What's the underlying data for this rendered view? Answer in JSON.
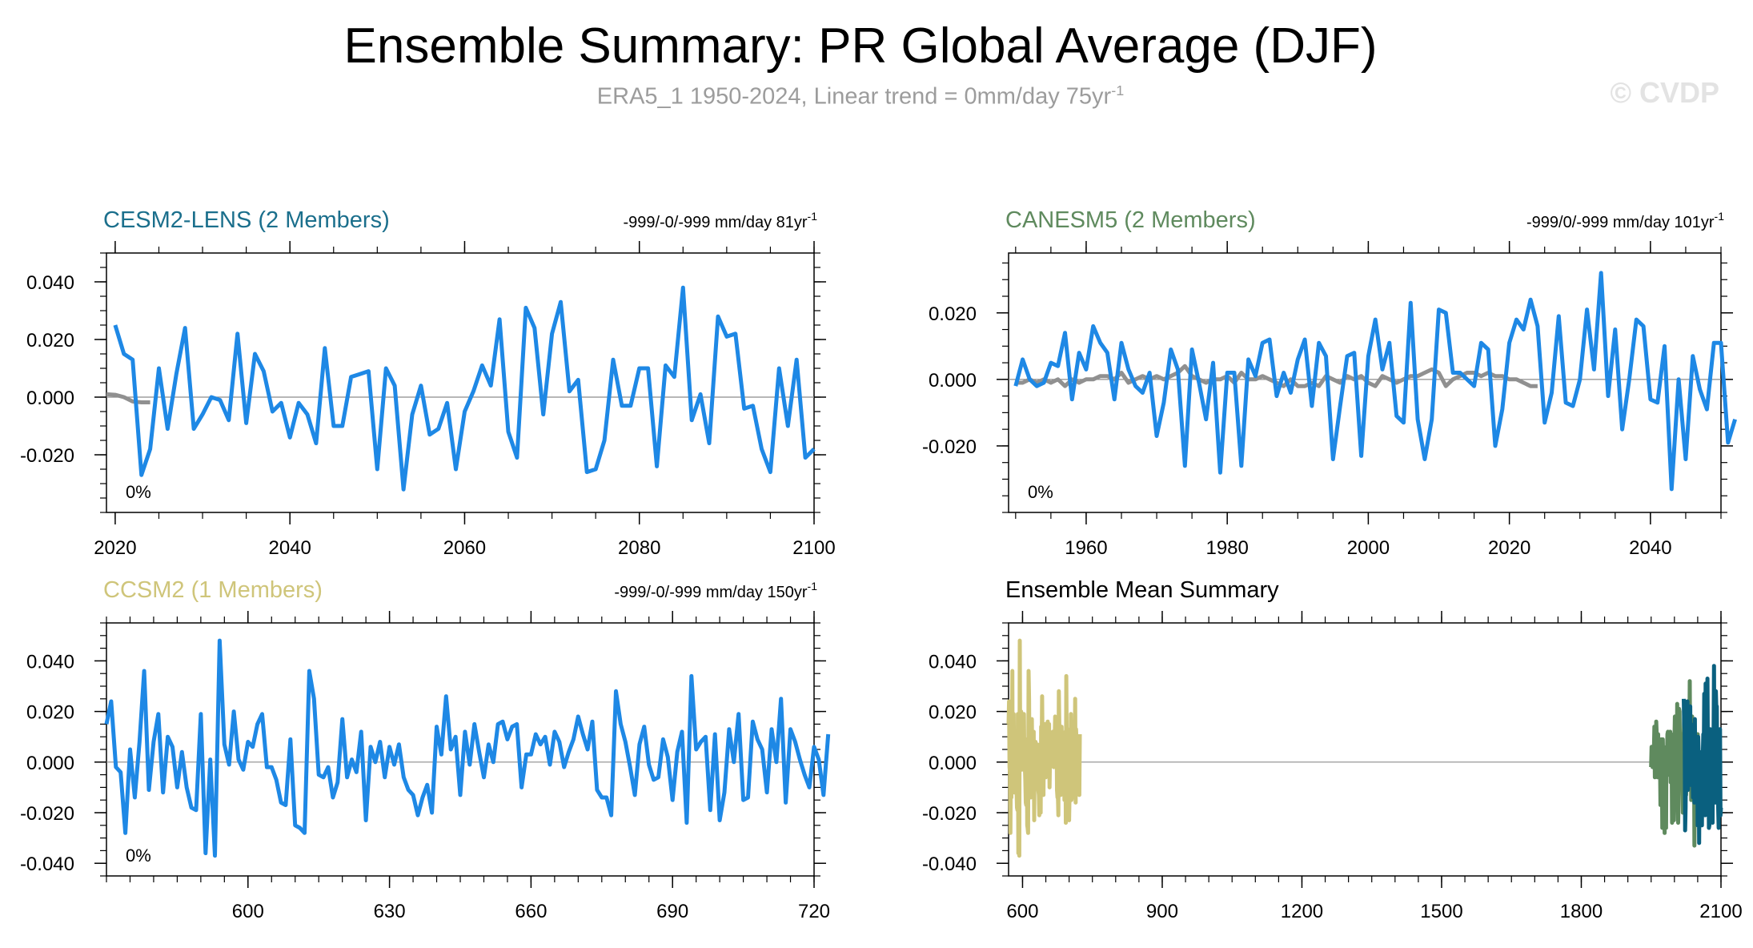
{
  "figure": {
    "title": "Ensemble Summary: PR Global Average (DJF)",
    "subtitle_main": "ERA5_1 1950-2024, Linear trend = 0mm/day 75yr",
    "subtitle_exp": "-1",
    "watermark": "© CVDP"
  },
  "chart_data": [
    {
      "type": "line",
      "panel": "top-left",
      "title": "CESM2-LENS (2 Members)",
      "title_color": "#1b6f8c",
      "stats_main": "-999/-0/-999 mm/day 81yr",
      "stats_exp": "-1",
      "percent_label": "0%",
      "xlim": [
        2019,
        2100
      ],
      "ylim": [
        -0.04,
        0.05
      ],
      "xticks": [
        2020,
        2040,
        2060,
        2080,
        2100
      ],
      "xtick_labels": [
        "2020",
        "2040",
        "2060",
        "2080",
        "2100"
      ],
      "yticks": [
        -0.02,
        0,
        0.02,
        0.04
      ],
      "ytick_labels": [
        "-0.020",
        "0.000",
        "0.020",
        "0.040"
      ],
      "minor_y_step": 0.005,
      "minor_x_step": 5,
      "zero_line": true,
      "series": [
        {
          "name": "observations",
          "color": "#909090",
          "x": [
            2019,
            2020,
            2021,
            2022,
            2023,
            2024
          ],
          "values": [
            0.001,
            0.0008,
            0.0,
            -0.0015,
            -0.0018,
            -0.0018
          ]
        },
        {
          "name": "ensemble",
          "color": "#1e88e5",
          "x_start": 2020,
          "values": [
            0.025,
            0.015,
            0.013,
            -0.027,
            -0.018,
            0.01,
            -0.011,
            0.008,
            0.024,
            -0.011,
            -0.006,
            0.0,
            -0.001,
            -0.008,
            0.022,
            -0.009,
            0.015,
            0.009,
            -0.005,
            -0.002,
            -0.014,
            -0.002,
            -0.006,
            -0.016,
            0.017,
            -0.01,
            -0.01,
            0.007,
            0.008,
            0.009,
            -0.025,
            0.01,
            0.004,
            -0.032,
            -0.006,
            0.004,
            -0.013,
            -0.011,
            -0.002,
            -0.025,
            -0.005,
            0.002,
            0.011,
            0.004,
            0.027,
            -0.012,
            -0.021,
            0.031,
            0.024,
            -0.006,
            0.022,
            0.033,
            0.002,
            0.006,
            -0.026,
            -0.025,
            -0.015,
            0.013,
            -0.003,
            -0.003,
            0.01,
            0.01,
            -0.024,
            0.011,
            0.007,
            0.038,
            -0.008,
            0.001,
            -0.016,
            0.028,
            0.021,
            0.022,
            -0.004,
            -0.003,
            -0.018,
            -0.026,
            0.01,
            -0.01,
            0.013,
            -0.021,
            -0.018
          ]
        }
      ]
    },
    {
      "type": "line",
      "panel": "top-right",
      "title": "CANESM5 (2 Members)",
      "title_color": "#5f8a5e",
      "stats_main": "-999/0/-999 mm/day 101yr",
      "stats_exp": "-1",
      "percent_label": "0%",
      "xlim": [
        1949,
        2050
      ],
      "ylim": [
        -0.04,
        0.038
      ],
      "xticks": [
        1960,
        1980,
        2000,
        2020,
        2040
      ],
      "xtick_labels": [
        "1960",
        "1980",
        "2000",
        "2020",
        "2040"
      ],
      "yticks": [
        -0.02,
        0,
        0.02
      ],
      "ytick_labels": [
        "-0.020",
        "0.000",
        "0.020"
      ],
      "minor_y_step": 0.005,
      "minor_x_step": 5,
      "zero_line": true,
      "series": [
        {
          "name": "observations",
          "color": "#909090",
          "x_start": 1950,
          "values": [
            -0.001,
            -0.001,
            0.0,
            -0.001,
            0.0,
            -0.001,
            0.0,
            -0.002,
            0.0,
            -0.001,
            0.0,
            0.0,
            0.001,
            0.001,
            0.0,
            0.002,
            -0.001,
            0.0,
            0.001,
            0.0,
            0.001,
            0.0,
            0.001,
            0.002,
            0.004,
            0.001,
            0.0,
            -0.001,
            0.0,
            0.0,
            0.001,
            -0.001,
            0.002,
            0.0,
            0.0,
            0.001,
            0.0,
            -0.001,
            -0.002,
            0.0,
            -0.002,
            -0.002,
            -0.001,
            -0.002,
            0.001,
            0.0,
            -0.001,
            0.001,
            0.0,
            0.001,
            -0.001,
            -0.002,
            0.001,
            0.0,
            -0.001,
            0.0,
            0.001,
            0.001,
            0.002,
            0.003,
            0.002,
            -0.002,
            0.0,
            0.001,
            0.002,
            0.002,
            0.001,
            0.002,
            0.001,
            0.001,
            0.0,
            0.0,
            -0.001,
            -0.002,
            -0.002
          ]
        },
        {
          "name": "ensemble",
          "color": "#1e88e5",
          "x_start": 1950,
          "values": [
            -0.002,
            0.006,
            0.0,
            -0.002,
            -0.001,
            0.005,
            0.004,
            0.014,
            -0.006,
            0.008,
            0.003,
            0.016,
            0.011,
            0.008,
            -0.006,
            0.011,
            0.003,
            -0.002,
            -0.004,
            0.002,
            -0.017,
            -0.007,
            0.009,
            0.003,
            -0.026,
            0.009,
            -0.001,
            -0.012,
            0.005,
            -0.028,
            0.002,
            0.002,
            -0.026,
            0.006,
            0.001,
            0.011,
            0.012,
            -0.005,
            0.002,
            -0.004,
            0.006,
            0.012,
            -0.008,
            0.011,
            0.007,
            -0.024,
            -0.008,
            0.007,
            0.008,
            -0.023,
            0.007,
            0.018,
            0.003,
            0.011,
            -0.011,
            -0.013,
            0.023,
            -0.012,
            -0.024,
            -0.012,
            0.021,
            0.02,
            0.002,
            0.002,
            0.0,
            -0.002,
            0.011,
            0.009,
            -0.02,
            -0.009,
            0.011,
            0.018,
            0.015,
            0.024,
            0.016,
            -0.013,
            -0.004,
            0.019,
            -0.007,
            -0.008,
            0.0,
            0.021,
            0.003,
            0.032,
            -0.005,
            0.015,
            -0.015,
            0.0,
            0.018,
            0.016,
            -0.006,
            -0.007,
            0.01,
            -0.033,
            0.0,
            -0.024,
            0.007,
            -0.003,
            -0.009,
            0.011,
            0.011,
            -0.019,
            -0.012
          ]
        }
      ]
    },
    {
      "type": "line",
      "panel": "bottom-left",
      "title": "CCSM2 (1 Members)",
      "title_color": "#cfc57a",
      "stats_main": "-999/-0/-999 mm/day 150yr",
      "stats_exp": "-1",
      "percent_label": "0%",
      "xlim": [
        570,
        720
      ],
      "ylim": [
        -0.045,
        0.055
      ],
      "xticks": [
        600,
        630,
        660,
        690,
        720
      ],
      "xtick_labels": [
        "600",
        "630",
        "660",
        "690",
        "720"
      ],
      "yticks": [
        -0.04,
        -0.02,
        0,
        0.02,
        0.04
      ],
      "ytick_labels": [
        "-0.040",
        "-0.020",
        "0.000",
        "0.020",
        "0.040"
      ],
      "minor_y_step": 0.005,
      "minor_x_step": 5,
      "zero_line": true,
      "series": [
        {
          "name": "ensemble",
          "color": "#1e88e5",
          "x_start": 570,
          "values": [
            0.015,
            0.024,
            -0.002,
            -0.004,
            -0.028,
            0.005,
            -0.014,
            0.008,
            0.036,
            -0.011,
            0.008,
            0.019,
            -0.012,
            0.01,
            0.006,
            -0.01,
            0.004,
            -0.01,
            -0.018,
            -0.019,
            0.019,
            -0.036,
            0.001,
            -0.037,
            0.048,
            0.007,
            -0.001,
            0.02,
            0.001,
            -0.003,
            0.008,
            0.006,
            0.015,
            0.019,
            -0.002,
            -0.002,
            -0.007,
            -0.016,
            -0.017,
            0.009,
            -0.025,
            -0.026,
            -0.028,
            0.036,
            0.025,
            -0.005,
            -0.006,
            -0.002,
            -0.014,
            -0.008,
            0.017,
            -0.006,
            0.001,
            -0.004,
            0.012,
            -0.023,
            0.006,
            0.0,
            0.008,
            -0.006,
            0.006,
            -0.001,
            0.007,
            -0.006,
            -0.011,
            -0.013,
            -0.021,
            -0.014,
            -0.009,
            -0.02,
            0.014,
            0.003,
            0.026,
            0.005,
            0.01,
            -0.013,
            0.012,
            -0.001,
            0.015,
            0.004,
            -0.006,
            0.007,
            0.0,
            0.015,
            0.016,
            0.009,
            0.014,
            0.015,
            -0.01,
            0.003,
            0.003,
            0.011,
            0.007,
            0.01,
            -0.001,
            0.012,
            0.008,
            -0.002,
            0.004,
            0.009,
            0.018,
            0.011,
            0.005,
            0.016,
            -0.011,
            -0.014,
            -0.014,
            -0.021,
            0.028,
            0.015,
            0.008,
            -0.002,
            -0.013,
            0.007,
            0.014,
            -0.001,
            -0.007,
            -0.006,
            0.009,
            0.002,
            -0.015,
            0.004,
            0.012,
            -0.024,
            0.034,
            0.005,
            0.008,
            0.01,
            -0.019,
            0.011,
            -0.023,
            -0.012,
            0.013,
            0.0,
            0.019,
            -0.015,
            -0.014,
            0.016,
            0.009,
            0.005,
            -0.012,
            0.013,
            0.0,
            0.025,
            -0.016,
            0.013,
            0.008,
            0.001,
            -0.005,
            -0.01,
            0.006,
            0.001,
            -0.013,
            0.011
          ]
        }
      ]
    },
    {
      "type": "line",
      "panel": "bottom-right",
      "title": "Ensemble Mean Summary",
      "title_color": "#000000",
      "xlim": [
        570,
        2100
      ],
      "ylim": [
        -0.045,
        0.055
      ],
      "xticks": [
        600,
        900,
        1200,
        1500,
        1800,
        2100
      ],
      "xtick_labels": [
        "600",
        "900",
        "1200",
        "1500",
        "1800",
        "2100"
      ],
      "yticks": [
        -0.04,
        -0.02,
        0,
        0.02,
        0.04
      ],
      "ytick_labels": [
        "-0.040",
        "-0.020",
        "0.000",
        "0.020",
        "0.040"
      ],
      "minor_y_step": 0.005,
      "minor_x_step": 50,
      "zero_line": true,
      "series": [
        {
          "name": "CCSM2 (1 Members)",
          "color": "#cfc57a",
          "ref": 2
        },
        {
          "name": "CANESM5 (2 Members)",
          "color": "#5f8a5e",
          "ref": 1
        },
        {
          "name": "CESM2-LENS (2 Members)",
          "color": "#0a607f",
          "ref": 0
        }
      ]
    }
  ]
}
